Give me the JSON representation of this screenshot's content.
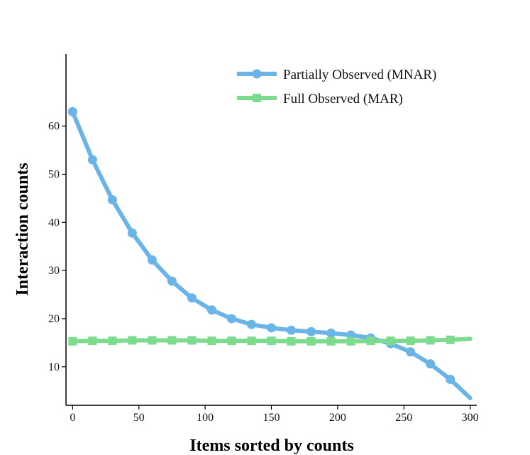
{
  "chart_data": {
    "type": "line",
    "title": "",
    "xlabel": "Items sorted by counts",
    "ylabel": "Interaction counts",
    "xlim": [
      -5,
      305
    ],
    "ylim": [
      2,
      75
    ],
    "xticks": [
      0,
      50,
      100,
      150,
      200,
      250,
      300
    ],
    "yticks": [
      10,
      20,
      30,
      40,
      50,
      60
    ],
    "grid": false,
    "legend_position": "top-right",
    "series": [
      {
        "name": "Partially Observed (MNAR)",
        "color": "#6ab4e8",
        "marker": "circle",
        "x": [
          0,
          15,
          30,
          45,
          60,
          75,
          90,
          105,
          120,
          135,
          150,
          165,
          180,
          195,
          210,
          225,
          240,
          255,
          270,
          285
        ],
        "y": [
          63.0,
          53.0,
          44.7,
          37.8,
          32.2,
          27.8,
          24.3,
          21.8,
          20.0,
          18.8,
          18.1,
          17.6,
          17.3,
          17.0,
          16.6,
          16.0,
          14.8,
          13.1,
          10.6,
          7.4
        ],
        "line_end": [
          300,
          3.5
        ]
      },
      {
        "name": "Full Observed (MAR)",
        "color": "#7ddb8e",
        "marker": "square",
        "x": [
          0,
          15,
          30,
          45,
          60,
          75,
          90,
          105,
          120,
          135,
          150,
          165,
          180,
          195,
          210,
          225,
          240,
          255,
          270,
          285
        ],
        "y": [
          15.3,
          15.4,
          15.4,
          15.5,
          15.5,
          15.5,
          15.5,
          15.4,
          15.4,
          15.4,
          15.4,
          15.3,
          15.3,
          15.3,
          15.3,
          15.4,
          15.4,
          15.4,
          15.5,
          15.6
        ],
        "line_end": [
          300,
          15.8
        ]
      }
    ]
  }
}
